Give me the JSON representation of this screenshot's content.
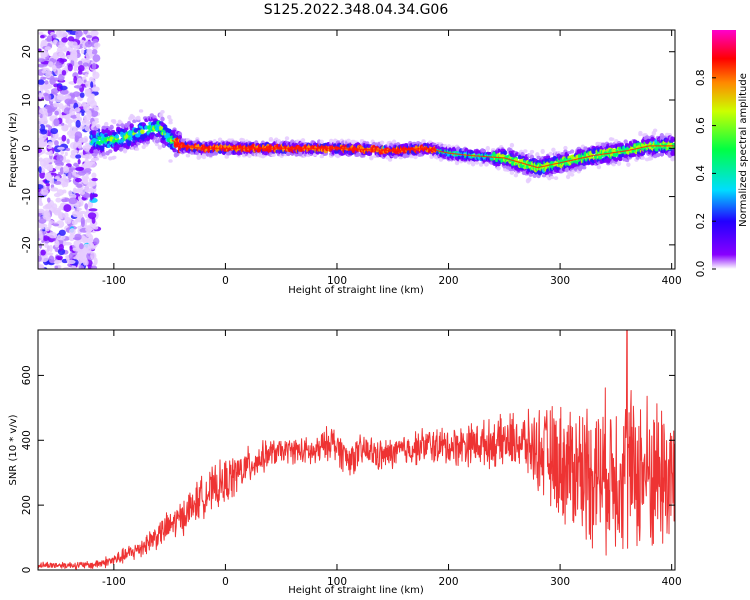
{
  "figure": {
    "title": "S125.2022.348.04.34.G06"
  },
  "chart_data": [
    {
      "type": "heatmap",
      "xlabel": "Height of straight line (km)",
      "ylabel": "Frequency (Hz)",
      "xlim": [
        -168,
        403
      ],
      "ylim": [
        -25,
        24.5
      ],
      "x_ticks": [
        -100,
        0,
        100,
        200,
        300,
        400
      ],
      "y_ticks": [
        -20,
        -10,
        0,
        10,
        20
      ],
      "colorbar": {
        "label": "Normalized spectral amplitude",
        "range": [
          0,
          1
        ],
        "ticks": [
          0.0,
          0.2,
          0.4,
          0.6,
          0.8
        ],
        "colormap": "hsv-rainbow (white/violet low → red high)"
      },
      "ridge": {
        "x": [
          -120,
          -100,
          -80,
          -60,
          -50,
          -40,
          -20,
          0,
          50,
          100,
          150,
          180,
          200,
          220,
          250,
          265,
          280,
          300,
          330,
          360,
          380,
          400
        ],
        "freq": [
          1.5,
          1.8,
          3.0,
          4.5,
          2.0,
          0.5,
          0.0,
          0.0,
          0.0,
          0.0,
          -0.5,
          0.0,
          -1.0,
          -1.5,
          -2.0,
          -3.0,
          -4.0,
          -3.0,
          -1.5,
          -0.5,
          0.5,
          0.5
        ],
        "peak_amplitude_range": [
          -45,
          190
        ]
      },
      "noise_region_x": [
        -168,
        -115
      ]
    },
    {
      "type": "line",
      "xlabel": "Height of straight line (km)",
      "ylabel": "SNR (10 * v/v)",
      "xlim": [
        -168,
        403
      ],
      "ylim": [
        0,
        740
      ],
      "x_ticks": [
        -100,
        0,
        100,
        200,
        300,
        400
      ],
      "y_ticks": [
        0,
        200,
        400,
        600
      ],
      "color": "#ee3333",
      "trend": {
        "x": [
          -168,
          -120,
          -100,
          -80,
          -60,
          -40,
          -20,
          0,
          20,
          40,
          60,
          80,
          95,
          110,
          125,
          140,
          160,
          180,
          200,
          220,
          240,
          260,
          280,
          300,
          320,
          340,
          360,
          380,
          400
        ],
        "y": [
          15,
          15,
          30,
          60,
          110,
          160,
          230,
          270,
          320,
          360,
          370,
          360,
          400,
          340,
          370,
          350,
          370,
          385,
          380,
          390,
          390,
          400,
          370,
          330,
          310,
          300,
          310,
          300,
          290
        ]
      },
      "spread": {
        "x": [
          -168,
          -120,
          -90,
          -60,
          -30,
          0,
          50,
          100,
          150,
          200,
          240,
          270,
          300,
          330,
          360,
          400
        ],
        "y": [
          8,
          10,
          20,
          35,
          50,
          60,
          30,
          45,
          40,
          50,
          60,
          80,
          150,
          190,
          210,
          200
        ]
      },
      "peak": {
        "x": 360,
        "y": 738
      }
    }
  ]
}
